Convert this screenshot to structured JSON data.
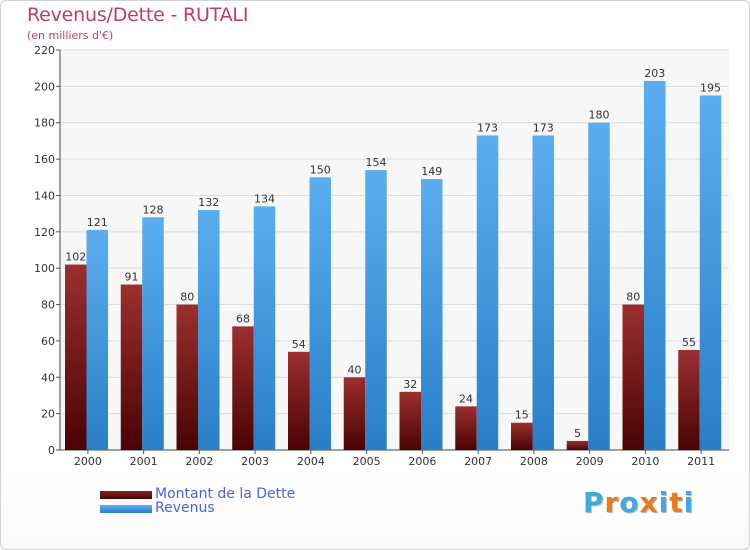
{
  "header": {
    "title": "Revenus/Dette - RUTALI",
    "subtitle": "(en milliers d'€)"
  },
  "chart_data": {
    "type": "bar",
    "title": "Revenus/Dette - RUTALI",
    "subtitle": "(en milliers d'€)",
    "xlabel": "",
    "ylabel": "",
    "ylim": [
      0,
      220
    ],
    "yticks": [
      0,
      20,
      40,
      60,
      80,
      100,
      120,
      140,
      160,
      180,
      200,
      220
    ],
    "grid": true,
    "legend_position": "bottom-left",
    "categories": [
      "2000",
      "2001",
      "2002",
      "2003",
      "2004",
      "2005",
      "2006",
      "2007",
      "2008",
      "2009",
      "2010",
      "2011"
    ],
    "series": [
      {
        "name": "Montant de la Dette",
        "color": "#7a1414",
        "values": [
          102,
          91,
          80,
          68,
          54,
          40,
          32,
          24,
          15,
          5,
          80,
          55
        ]
      },
      {
        "name": "Revenus",
        "color": "#4a9fe0",
        "values": [
          121,
          128,
          132,
          134,
          150,
          154,
          149,
          173,
          173,
          180,
          203,
          195
        ]
      }
    ]
  },
  "logo": {
    "letters": [
      "P",
      "r",
      "o",
      "x",
      "i",
      "t",
      "i"
    ],
    "colors": [
      "#3fa9e0",
      "#e9791f",
      "#3fa9e0",
      "#e9791f",
      "#3fa9e0",
      "#e9791f",
      "#3fa9e0"
    ]
  }
}
